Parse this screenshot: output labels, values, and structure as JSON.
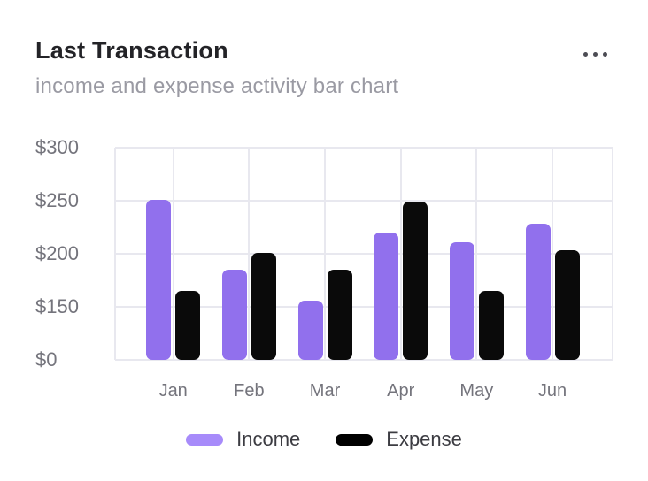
{
  "header": {
    "title": "Last Transaction",
    "subtitle": "income and expense activity bar chart",
    "menu_icon": "ellipsis-icon"
  },
  "colors": {
    "income_bar": "#9170ed",
    "income_legend": "#a78bfa",
    "expense_bar": "#0a0a0a",
    "expense_legend": "#000000",
    "grid": "#e8e8ef",
    "axis_text": "#74747c",
    "title_text": "#232327",
    "subtitle_text": "#9a9aa3",
    "legend_text": "#3c3c42"
  },
  "chart_data": {
    "type": "bar",
    "categories": [
      "Jan",
      "Feb",
      "Mar",
      "Apr",
      "May",
      "Jun"
    ],
    "series": [
      {
        "name": "Income",
        "color": "#9170ed",
        "values": [
          251,
          185,
          156,
          220,
          211,
          228
        ]
      },
      {
        "name": "Expense",
        "color": "#0a0a0a",
        "values": [
          165,
          201,
          185,
          249,
          165,
          203
        ]
      }
    ],
    "y_ticks": [
      0,
      150,
      200,
      250,
      300
    ],
    "y_tick_labels": [
      "$0",
      "$150",
      "$200",
      "$250",
      "$300"
    ],
    "y_axis_note": "ticks rendered evenly spaced (non-linear axis)",
    "xlabel": "",
    "ylabel": "",
    "grid": true,
    "legend_position": "bottom"
  }
}
